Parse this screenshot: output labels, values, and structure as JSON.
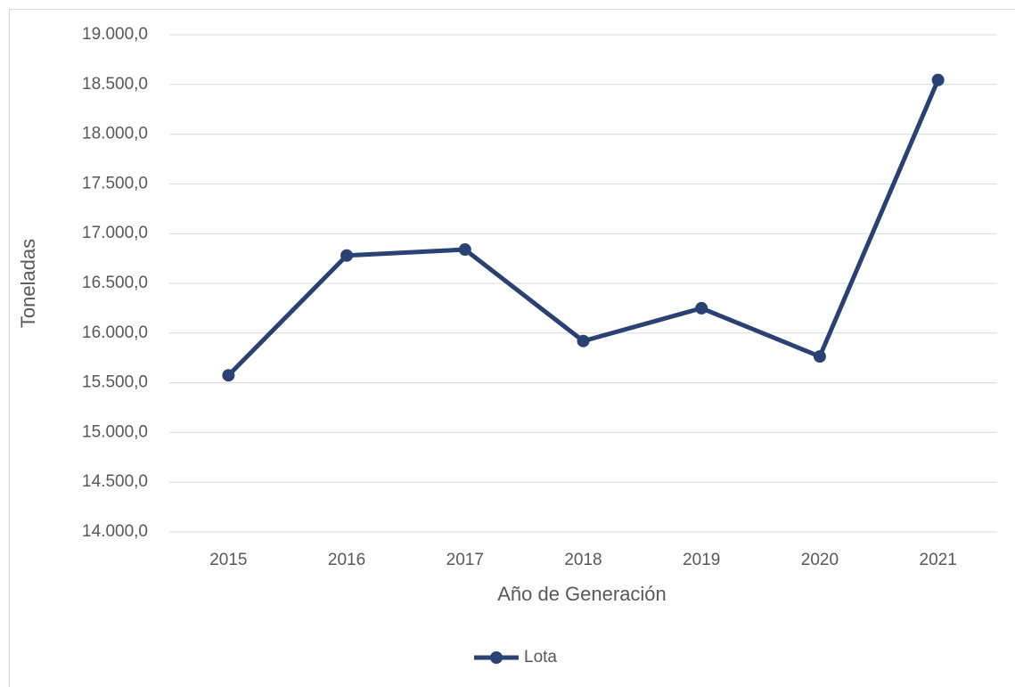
{
  "chart_data": {
    "type": "line",
    "x_label": "Año de Generación",
    "y_label": "Toneladas",
    "categories": [
      "2015",
      "2016",
      "2017",
      "2018",
      "2019",
      "2020",
      "2021"
    ],
    "series": [
      {
        "name": "Lota",
        "color": "#2a4273",
        "values": [
          15575,
          16780,
          16840,
          15920,
          16250,
          15765,
          18545
        ]
      }
    ],
    "ylim": [
      14000,
      19000
    ],
    "yticks": [
      {
        "value": 14000,
        "label": "14.000,0"
      },
      {
        "value": 14500,
        "label": "14.500,0"
      },
      {
        "value": 15000,
        "label": "15.000,0"
      },
      {
        "value": 15500,
        "label": "15.500,0"
      },
      {
        "value": 16000,
        "label": "16.000,0"
      },
      {
        "value": 16500,
        "label": "16.500,0"
      },
      {
        "value": 17000,
        "label": "17.000,0"
      },
      {
        "value": 17500,
        "label": "17.500,0"
      },
      {
        "value": 18000,
        "label": "18.000,0"
      },
      {
        "value": 18500,
        "label": "18.500,0"
      },
      {
        "value": 19000,
        "label": "19.000,0"
      }
    ],
    "grid": true,
    "legend": "bottom"
  }
}
